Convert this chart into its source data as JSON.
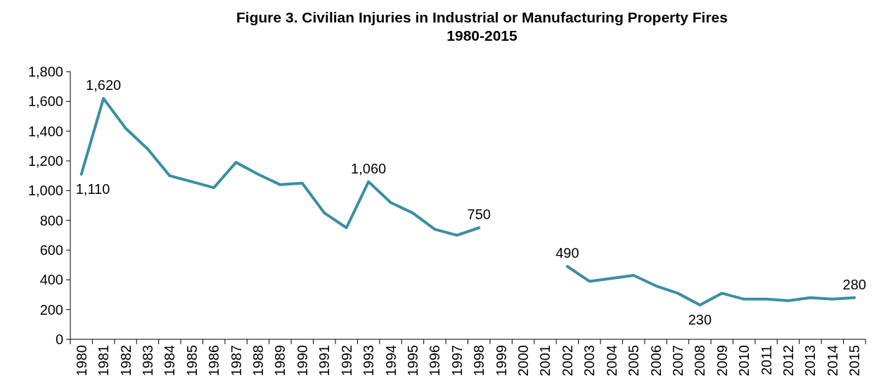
{
  "chart_data": {
    "type": "line",
    "title": "Figure 3. Civilian Injuries in Industrial or Manufacturing Property Fires\n1980-2015",
    "categories": [
      "1980",
      "1981",
      "1982",
      "1983",
      "1984",
      "1985",
      "1986",
      "1987",
      "1988",
      "1989",
      "1990",
      "1991",
      "1992",
      "1993",
      "1994",
      "1995",
      "1996",
      "1997",
      "1998",
      "1999",
      "2000",
      "2001",
      "2002",
      "2003",
      "2004",
      "2005",
      "2006",
      "2007",
      "2008",
      "2009",
      "2010",
      "2011",
      "2012",
      "2013",
      "2014",
      "2015"
    ],
    "series": [
      {
        "color": "#3a8fa3",
        "values": [
          1110,
          1620,
          1420,
          1280,
          1100,
          1060,
          1020,
          1190,
          1110,
          1040,
          1050,
          850,
          750,
          1060,
          920,
          850,
          740,
          700,
          750,
          null,
          null,
          null,
          490,
          390,
          410,
          430,
          360,
          310,
          230,
          310,
          270,
          270,
          260,
          280,
          270,
          280
        ],
        "value_labels": [
          "1,110",
          "1,620",
          null,
          null,
          null,
          null,
          null,
          null,
          null,
          null,
          null,
          null,
          null,
          "1,060",
          null,
          null,
          null,
          null,
          "750",
          null,
          null,
          null,
          "490",
          null,
          null,
          null,
          null,
          null,
          "230",
          null,
          null,
          null,
          null,
          null,
          null,
          "280"
        ]
      }
    ],
    "ylim": [
      0,
      1800
    ],
    "yticks": [
      0,
      {
        "value": 200,
        "label": "200"
      },
      {
        "value": 400,
        "label": "400"
      },
      {
        "value": 600,
        "label": "600"
      },
      {
        "value": 800,
        "label": "800"
      },
      {
        "value": 1000,
        "label": "1,000"
      },
      {
        "value": 1200,
        "label": "1,200"
      },
      {
        "value": 1400,
        "label": "1,400"
      },
      {
        "value": 1600,
        "label": "1,600"
      },
      {
        "value": 1800,
        "label": "1,800"
      }
    ],
    "grid": false,
    "line_style": "solid",
    "marker": "none"
  }
}
